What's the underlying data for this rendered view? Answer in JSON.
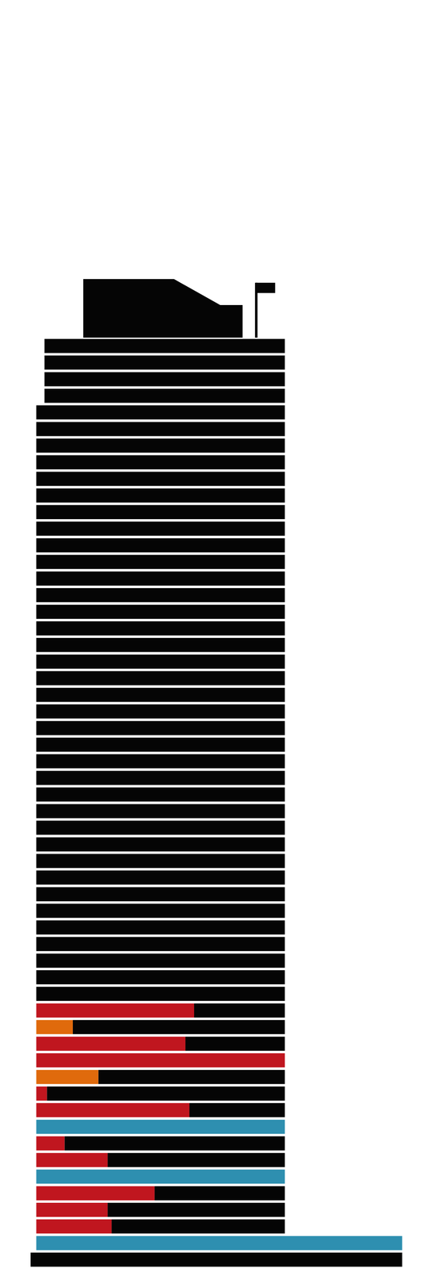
{
  "chart_data": {
    "type": "bar",
    "orientation": "horizontal",
    "stacked": true,
    "tick_labels": false,
    "grid": false,
    "xlim": [
      -14.6,
      158.8
    ],
    "categories": [
      null,
      null,
      null,
      null,
      null,
      null,
      null,
      null,
      null,
      null,
      null,
      null,
      null,
      null,
      null,
      null,
      null,
      null,
      null,
      null,
      null,
      null,
      null,
      null,
      null,
      null,
      null,
      null,
      null,
      null,
      null,
      null,
      null,
      null,
      null,
      null,
      null,
      null,
      null,
      null,
      null,
      null,
      null,
      null,
      null,
      null,
      null,
      null,
      null,
      null,
      null,
      null,
      null,
      null,
      null,
      null
    ],
    "series": [
      {
        "base": [
          3.3,
          3.3,
          3.3,
          3.3,
          0,
          0,
          0,
          0,
          0,
          0,
          0,
          0,
          0,
          0,
          0,
          0,
          0,
          0,
          0,
          0,
          0,
          0,
          0,
          0,
          0,
          0,
          0,
          0,
          0,
          0,
          0,
          0,
          0,
          0,
          0,
          0,
          0,
          0,
          0,
          0,
          0,
          0,
          0,
          0,
          0,
          0,
          0,
          0,
          0,
          0,
          0,
          0,
          0,
          0,
          0,
          -2.3
        ],
        "values": [
          0,
          0,
          0,
          0,
          0,
          0,
          0,
          0,
          0,
          0,
          0,
          0,
          0,
          0,
          0,
          0,
          0,
          0,
          0,
          0,
          0,
          0,
          0,
          0,
          0,
          0,
          0,
          0,
          0,
          0,
          0,
          0,
          0,
          0,
          0,
          0,
          0,
          0,
          0,
          0,
          63.5,
          14.7,
          60,
          100,
          25,
          4.3,
          61.6,
          100,
          11.4,
          28.7,
          100,
          47.6,
          28.7,
          30.3,
          147.2,
          0
        ],
        "colors": [
          "#050505",
          "#050505",
          "#050505",
          "#050505",
          "#050505",
          "#050505",
          "#050505",
          "#050505",
          "#050505",
          "#050505",
          "#050505",
          "#050505",
          "#050505",
          "#050505",
          "#050505",
          "#050505",
          "#050505",
          "#050505",
          "#050505",
          "#050505",
          "#050505",
          "#050505",
          "#050505",
          "#050505",
          "#050505",
          "#050505",
          "#050505",
          "#050505",
          "#050505",
          "#050505",
          "#050505",
          "#050505",
          "#050505",
          "#050505",
          "#050505",
          "#050505",
          "#050505",
          "#050505",
          "#050505",
          "#050505",
          "#c0161f",
          "#e06a0c",
          "#c0161f",
          "#c0161f",
          "#e06a0c",
          "#c0161f",
          "#c0161f",
          "#2e8fb0",
          "#c0161f",
          "#c0161f",
          "#2e8fb0",
          "#c0161f",
          "#c0161f",
          "#c0161f",
          "#2e8fb0",
          "#050505"
        ]
      },
      {
        "color": "#050505",
        "values": [
          96.7,
          96.7,
          96.7,
          96.7,
          100,
          100,
          100,
          100,
          100,
          100,
          100,
          100,
          100,
          100,
          100,
          100,
          100,
          100,
          100,
          100,
          100,
          100,
          100,
          100,
          100,
          100,
          100,
          100,
          100,
          100,
          100,
          100,
          100,
          100,
          100,
          100,
          100,
          100,
          100,
          100,
          36.5,
          85.3,
          40,
          0,
          75,
          95.7,
          38.4,
          0,
          88.6,
          71.3,
          0,
          52.4,
          71.3,
          69.7,
          0,
          149.5
        ]
      }
    ]
  }
}
